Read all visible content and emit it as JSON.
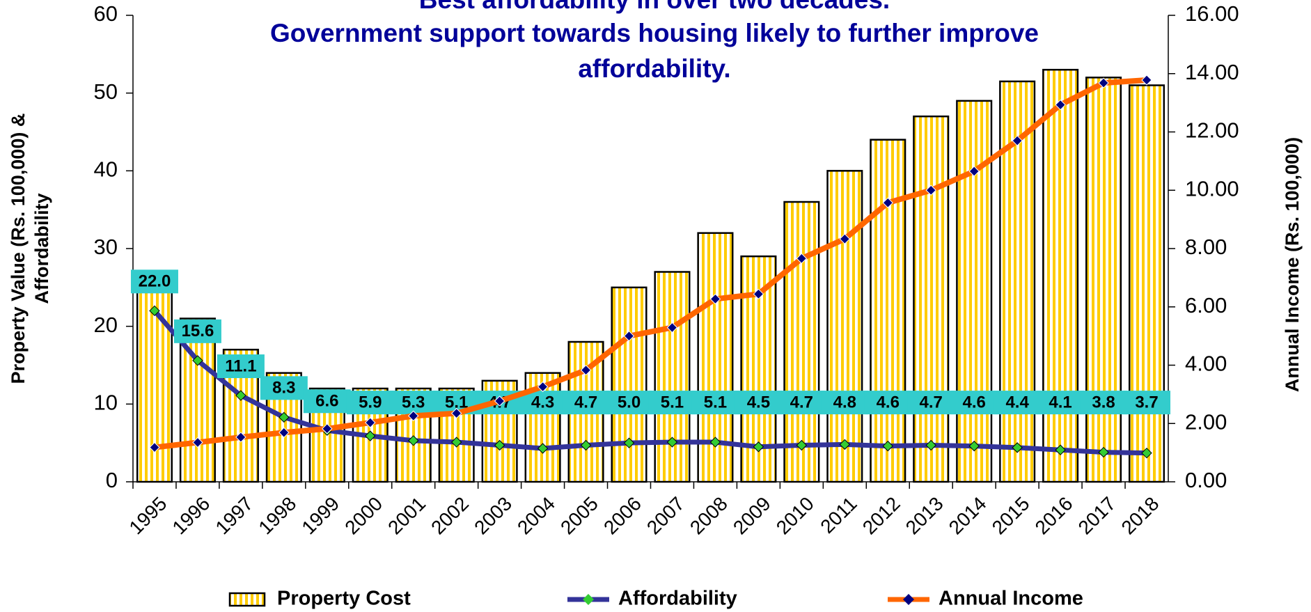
{
  "chart_data": {
    "type": "bar-line",
    "title": [
      "Best affordability in over two decades.",
      "Government support towards housing likely to further improve",
      "affordability."
    ],
    "ylabel": [
      "Property Value (Rs. 100,000) &",
      "Affordability"
    ],
    "y2label": "Annual Income (Rs. 100,000)",
    "categories": [
      "1995",
      "1996",
      "1997",
      "1998",
      "1999",
      "2000",
      "2001",
      "2002",
      "2003",
      "2004",
      "2005",
      "2006",
      "2007",
      "2008",
      "2009",
      "2010",
      "2011",
      "2012",
      "2013",
      "2014",
      "2015",
      "2016",
      "2017",
      "2018"
    ],
    "series": [
      {
        "name": "Property Cost",
        "type": "bar",
        "color": "#FFCC00",
        "values": [
          26,
          21,
          17,
          14,
          12,
          12,
          12,
          12,
          13,
          14,
          18,
          25,
          27,
          32,
          29,
          36,
          40,
          44,
          47,
          49,
          51.5,
          53,
          52,
          51
        ]
      },
      {
        "name": "Affordability",
        "type": "line",
        "color": "#333399",
        "marker_color": "#33CC33",
        "values": [
          22.0,
          15.6,
          11.1,
          8.3,
          6.6,
          5.9,
          5.3,
          5.1,
          4.7,
          4.3,
          4.7,
          5.0,
          5.1,
          5.1,
          4.5,
          4.7,
          4.8,
          4.6,
          4.7,
          4.6,
          4.4,
          4.1,
          3.8,
          3.7
        ],
        "value_labels": [
          "22.0",
          "15.6",
          "11.1",
          "8.3",
          "6.6",
          "5.9",
          "5.3",
          "5.1",
          "4.7",
          "4.3",
          "4.7",
          "5.0",
          "5.1",
          "5.1",
          "4.5",
          "4.7",
          "4.8",
          "4.6",
          "4.7",
          "4.6",
          "4.4",
          "4.1",
          "3.8",
          "3.7"
        ],
        "label_color": "#33CCCC"
      },
      {
        "name": "Annual Income",
        "type": "line",
        "axis": "y2",
        "color": "#FF6600",
        "marker_color": "#000080",
        "values": [
          1.18,
          1.35,
          1.53,
          1.69,
          1.82,
          2.03,
          2.26,
          2.35,
          2.77,
          3.26,
          3.83,
          5.0,
          5.29,
          6.27,
          6.44,
          7.66,
          8.33,
          9.57,
          10.0,
          10.65,
          11.7,
          12.93,
          13.68,
          13.78
        ]
      }
    ],
    "ylim": [
      0,
      60
    ],
    "yticks": [
      0,
      10,
      20,
      30,
      40,
      50,
      60
    ],
    "y2lim": [
      0,
      16
    ],
    "y2ticks": [
      {
        "value": 0,
        "label": "0.00"
      },
      {
        "value": 2,
        "label": "2.00"
      },
      {
        "value": 4,
        "label": "4.00"
      },
      {
        "value": 6,
        "label": "6.00"
      },
      {
        "value": 8,
        "label": "8.00"
      },
      {
        "value": 10,
        "label": "10.00"
      },
      {
        "value": 12,
        "label": "12.00"
      },
      {
        "value": 14,
        "label": "14.00"
      },
      {
        "value": 16,
        "label": "16.00"
      }
    ],
    "legend": "bottom"
  }
}
